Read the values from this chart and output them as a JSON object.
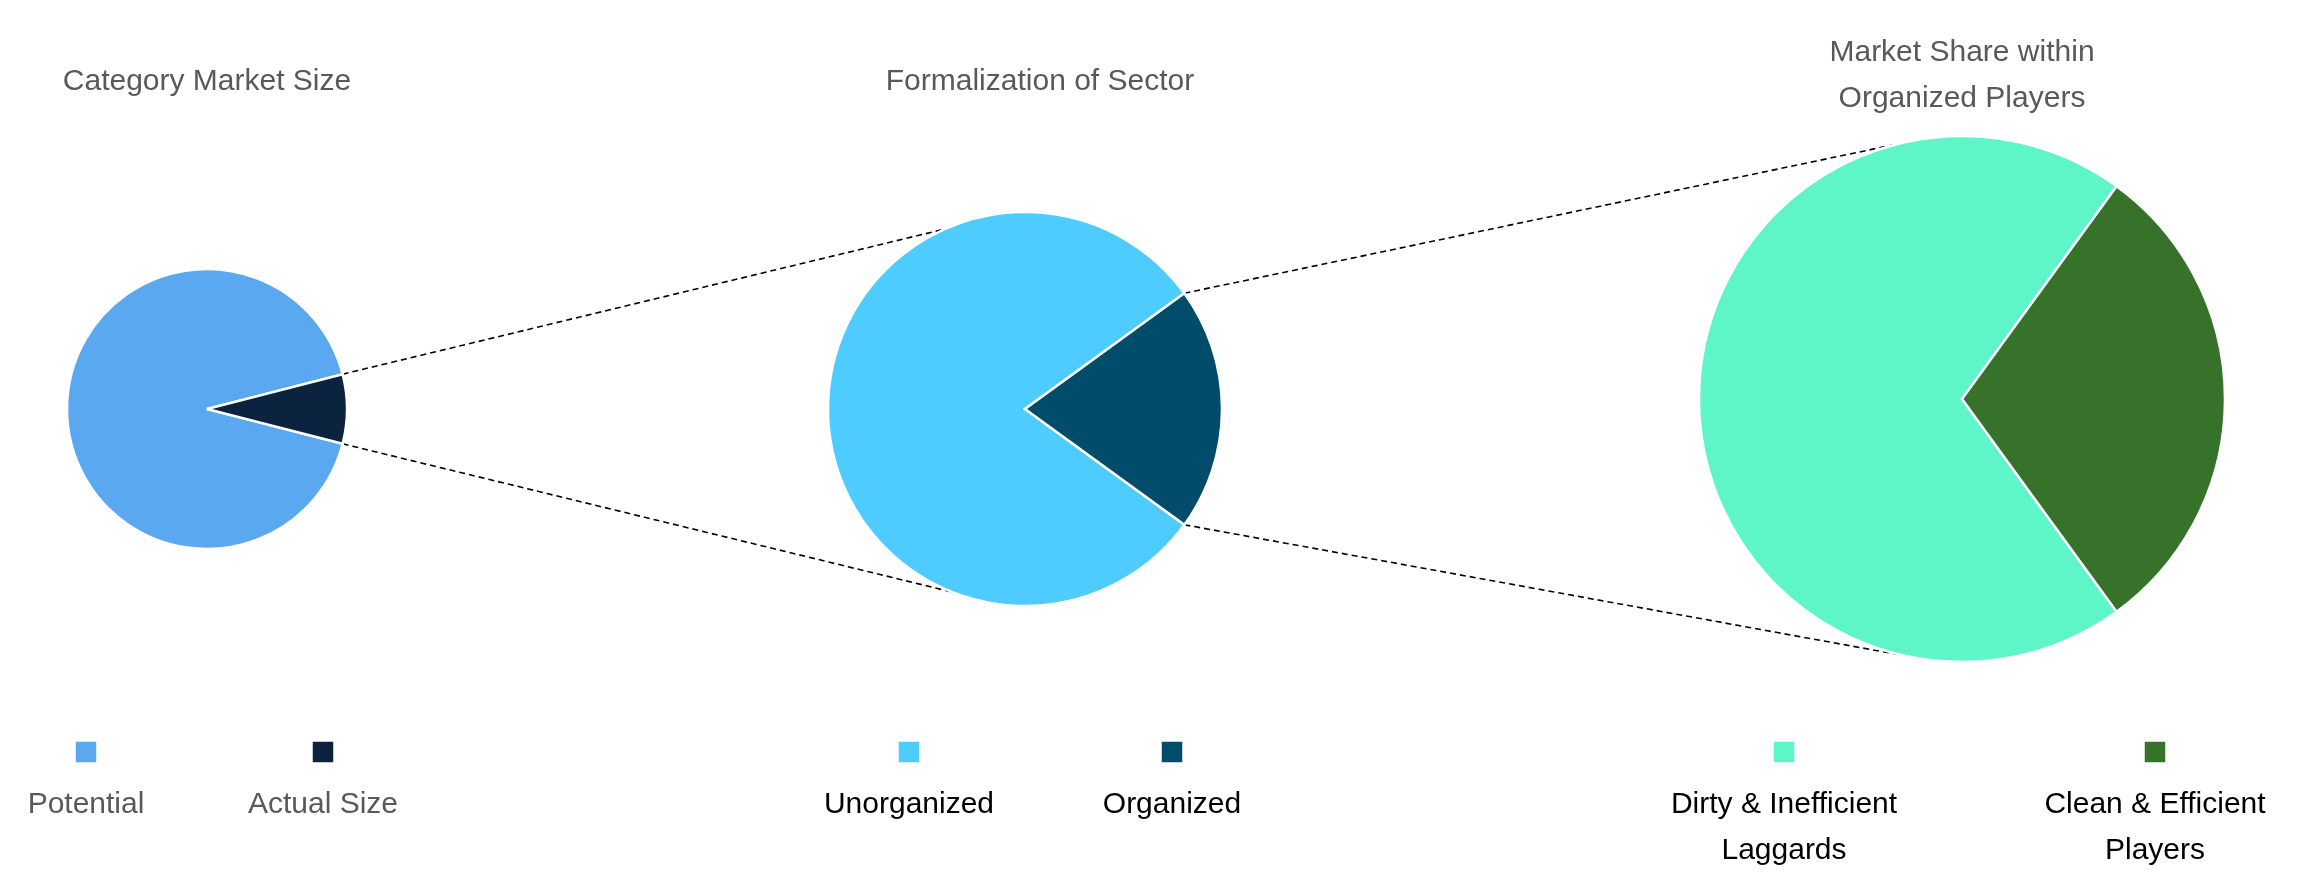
{
  "chart_data": [
    {
      "type": "pie",
      "title": "Category Market Size",
      "categories": [
        "Potential",
        "Actual Size"
      ],
      "values": [
        92,
        8
      ],
      "colors": [
        "#5aa9f0",
        "#0c2340"
      ],
      "legend": "bottom"
    },
    {
      "type": "pie",
      "title": "Formalization of Sector",
      "categories": [
        "Unorganized",
        "Organized"
      ],
      "values": [
        80,
        20
      ],
      "colors": [
        "#4ecbff",
        "#004c6a"
      ],
      "legend": "bottom"
    },
    {
      "type": "pie",
      "title": "Market Share within Organized Players",
      "categories": [
        "Dirty & Inefficient Laggards",
        "Clean & Efficient Players"
      ],
      "values": [
        70,
        30
      ],
      "colors": [
        "#5ef5c8",
        "#37722a"
      ],
      "legend": "bottom"
    }
  ]
}
